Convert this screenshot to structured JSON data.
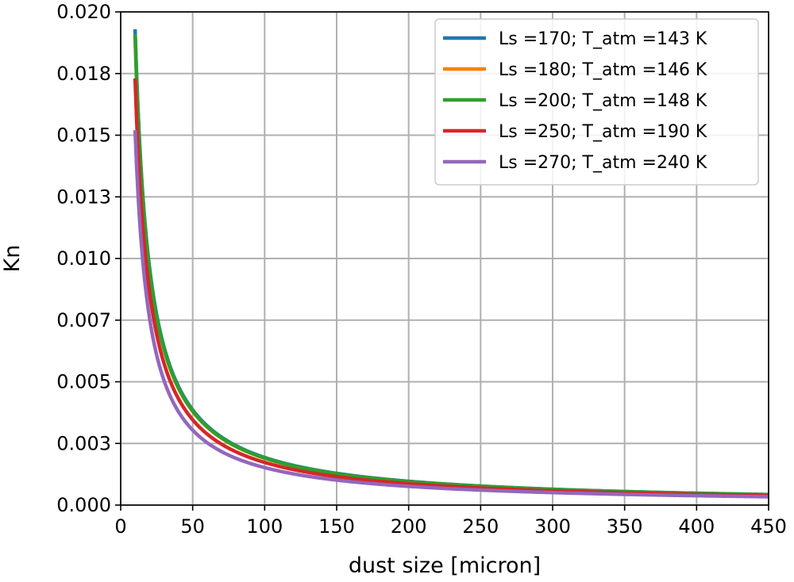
{
  "chart_data": {
    "type": "line",
    "title": "",
    "xlabel": "dust size [micron]",
    "ylabel": "Kn",
    "xlim": [
      0,
      450
    ],
    "ylim": [
      0.0,
      0.02
    ],
    "xticks": [
      0,
      50,
      100,
      150,
      200,
      250,
      300,
      350,
      400,
      450
    ],
    "xtick_labels": [
      "0",
      "50",
      "100",
      "150",
      "200",
      "250",
      "300",
      "350",
      "400",
      "450"
    ],
    "yticks": [
      0.0,
      0.0025,
      0.005,
      0.0075,
      0.01,
      0.0125,
      0.015,
      0.0175,
      0.02
    ],
    "ytick_labels": [
      "0.000",
      "0.003",
      "0.005",
      "0.007",
      "0.010",
      "0.013",
      "0.015",
      "0.018",
      "0.020"
    ],
    "grid": true,
    "legend_position": "top-right",
    "curve_form": "Kn = k / dust_size",
    "x_range": [
      10,
      450
    ],
    "series": [
      {
        "name": "Ls =170; T_atm =143 K",
        "color": "#1f77b4",
        "k": 0.193
      },
      {
        "name": "Ls =180; T_atm =146 K",
        "color": "#ff7f0e",
        "k": 0.19
      },
      {
        "name": "Ls =200; T_atm =148 K",
        "color": "#2ca02c",
        "k": 0.191
      },
      {
        "name": "Ls =250; T_atm =190 K",
        "color": "#d62728",
        "k": 0.173
      },
      {
        "name": "Ls =270; T_atm =240 K",
        "color": "#9467bd",
        "k": 0.152
      }
    ]
  }
}
